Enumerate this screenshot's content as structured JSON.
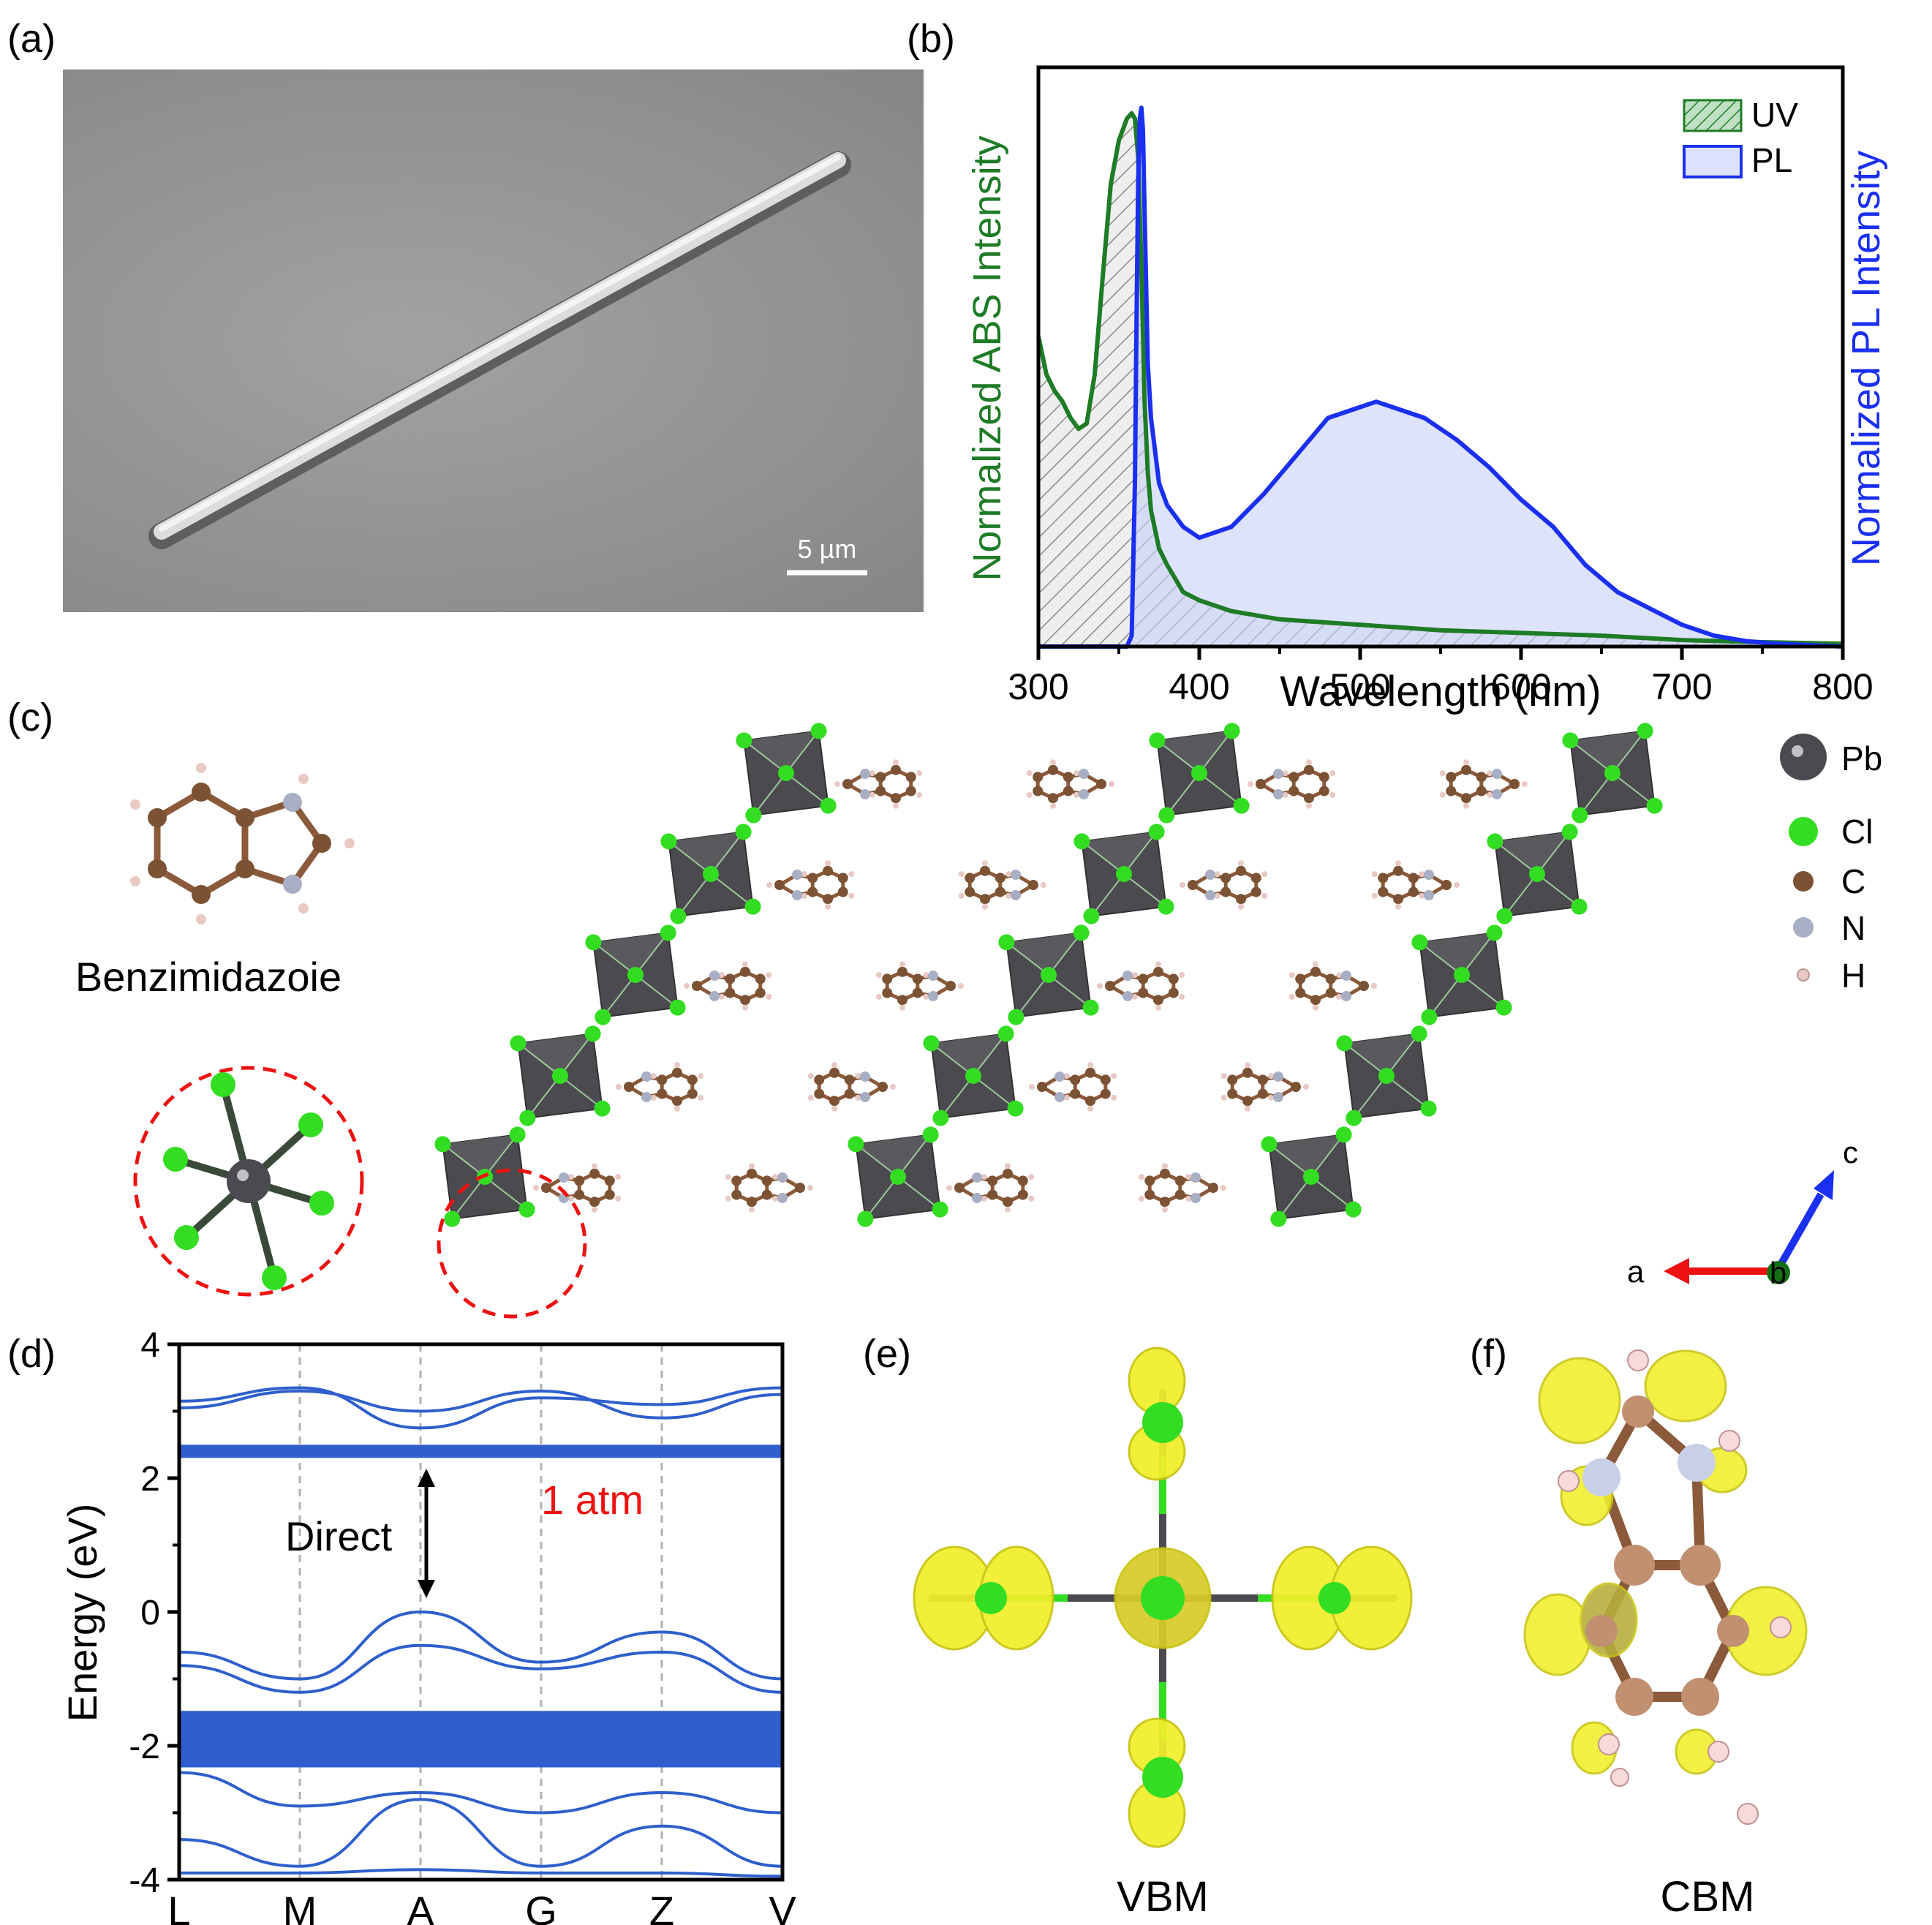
{
  "panels": {
    "a": "(a)",
    "b": "(b)",
    "c": "(c)",
    "d": "(d)",
    "e": "(e)",
    "f": "(f)"
  },
  "panel_a": {
    "scale_bar": "5 µm"
  },
  "panel_c": {
    "molecule_label": "Benzimidazoie",
    "legend": [
      "Pb",
      "Cl",
      "C",
      "N",
      "H"
    ],
    "axes": {
      "a": "a",
      "b": "b",
      "c": "c"
    }
  },
  "panel_e": {
    "label": "VBM"
  },
  "panel_f": {
    "label": "CBM"
  },
  "colors": {
    "abs": "#1e7b26",
    "pl": "#1a2ff0",
    "bands": "#2e5fcc",
    "annotation": "#ee1111"
  },
  "chart_data": [
    {
      "type": "area",
      "xlabel": "Wavelength (nm)",
      "ylabel_left": "Normalized ABS Intensity",
      "ylabel_right": "Normalized  PL Intensity",
      "xlim": [
        300,
        800
      ],
      "xticks": [
        300,
        400,
        500,
        600,
        700,
        800
      ],
      "legend_position": "top-right",
      "series": [
        {
          "name": "UV",
          "x": [
            300,
            305,
            310,
            315,
            320,
            325,
            330,
            335,
            340,
            345,
            350,
            355,
            358,
            360,
            362,
            364,
            366,
            368,
            370,
            375,
            380,
            390,
            400,
            420,
            450,
            500,
            550,
            600,
            650,
            700,
            750,
            800
          ],
          "values": [
            0.57,
            0.5,
            0.47,
            0.45,
            0.42,
            0.4,
            0.41,
            0.5,
            0.68,
            0.85,
            0.93,
            0.97,
            0.98,
            0.97,
            0.9,
            0.7,
            0.45,
            0.32,
            0.25,
            0.18,
            0.15,
            0.1,
            0.085,
            0.065,
            0.05,
            0.04,
            0.03,
            0.025,
            0.02,
            0.012,
            0.008,
            0.005
          ]
        },
        {
          "name": "PL",
          "x": [
            300,
            350,
            355,
            358,
            360,
            361,
            362,
            363,
            364,
            365,
            366,
            368,
            370,
            375,
            380,
            390,
            400,
            410,
            420,
            440,
            460,
            480,
            500,
            510,
            520,
            540,
            560,
            580,
            600,
            620,
            640,
            660,
            680,
            700,
            720,
            740,
            760,
            800
          ],
          "values": [
            0,
            0,
            0,
            0.02,
            0.3,
            0.6,
            0.85,
            0.97,
            0.99,
            0.95,
            0.8,
            0.52,
            0.42,
            0.3,
            0.26,
            0.22,
            0.2,
            0.21,
            0.22,
            0.28,
            0.35,
            0.42,
            0.44,
            0.45,
            0.44,
            0.42,
            0.38,
            0.33,
            0.27,
            0.22,
            0.15,
            0.1,
            0.07,
            0.04,
            0.02,
            0.01,
            0.005,
            0
          ]
        }
      ]
    },
    {
      "type": "line",
      "ylabel": "Energy (eV)",
      "ylim": [
        -4,
        4
      ],
      "yticks": [
        -4,
        -2,
        0,
        2,
        4
      ],
      "kpoints": [
        "L",
        "M",
        "A",
        "G",
        "Z",
        "V"
      ],
      "annotations": [
        "Direct",
        "1 atm"
      ],
      "series": [
        {
          "name": "",
          "values": [
            3.05,
            3.3,
            3.0,
            3.3,
            2.9,
            3.25
          ]
        },
        {
          "name": "",
          "values": [
            3.15,
            3.35,
            2.75,
            3.2,
            3.1,
            3.35
          ]
        },
        {
          "name": "",
          "values": [
            2.4,
            2.4,
            2.4,
            2.4,
            2.4,
            2.4
          ]
        },
        {
          "name": "",
          "values": [
            -0.6,
            -1.0,
            0.0,
            -0.75,
            -0.3,
            -1.0
          ]
        },
        {
          "name": "",
          "values": [
            -0.8,
            -1.2,
            -0.5,
            -0.85,
            -0.6,
            -1.2
          ]
        },
        {
          "name": "",
          "values": [
            -1.5,
            -1.5,
            -1.5,
            -1.5,
            -1.5,
            -1.5
          ]
        },
        {
          "name": "",
          "values": [
            -2.3,
            -2.3,
            -2.3,
            -2.3,
            -2.3,
            -2.3
          ]
        },
        {
          "name": "",
          "values": [
            -2.4,
            -2.9,
            -2.7,
            -3.0,
            -2.7,
            -3.0
          ]
        },
        {
          "name": "",
          "values": [
            -3.4,
            -3.8,
            -2.8,
            -3.8,
            -3.2,
            -3.8
          ]
        },
        {
          "name": "",
          "values": [
            -3.9,
            -3.9,
            -3.85,
            -3.9,
            -3.9,
            -3.95
          ]
        }
      ]
    }
  ]
}
